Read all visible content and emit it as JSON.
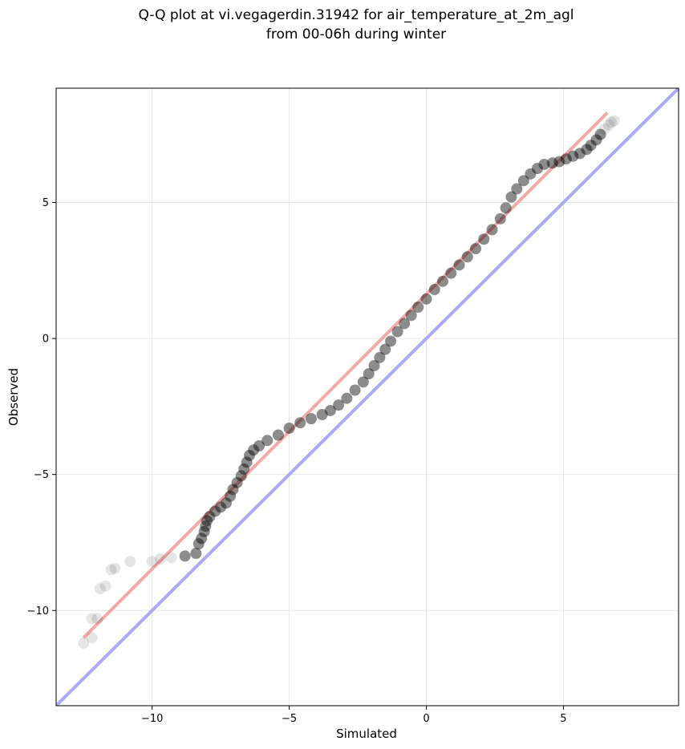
{
  "chart_data": {
    "type": "scatter",
    "title_lines": [
      "Q-Q plot at vi.vegagerdin.31942 for air_temperature_at_2m_agl",
      "from 00-06h during winter"
    ],
    "xlabel": "Simulated",
    "ylabel": "Observed",
    "xlim": [
      -13.5,
      9.2
    ],
    "ylim": [
      -13.5,
      9.2
    ],
    "x_ticks": [
      -10,
      -5,
      0,
      5
    ],
    "y_ticks": [
      -10,
      -5,
      0,
      5
    ],
    "x_tick_labels": [
      "−10",
      "−5",
      "0",
      "5"
    ],
    "y_tick_labels": [
      "−10",
      "−5",
      "0",
      "5"
    ],
    "grid": true,
    "point_color": "#000000",
    "identity_line_color": "#aaaaf5",
    "fit_line_color": "#f2a5a5",
    "series": [
      {
        "kind": "quantiles",
        "points": [
          [
            -12.5,
            -11.2
          ],
          [
            -12.2,
            -11.0
          ],
          [
            -12.2,
            -10.3
          ],
          [
            -12.0,
            -10.3
          ],
          [
            -11.9,
            -9.2
          ],
          [
            -11.7,
            -9.1
          ],
          [
            -11.5,
            -8.5
          ],
          [
            -11.35,
            -8.45
          ],
          [
            -10.8,
            -8.2
          ],
          [
            -10.0,
            -8.2
          ],
          [
            -9.7,
            -8.1
          ],
          [
            -9.3,
            -8.05
          ],
          [
            -8.8,
            -8.0
          ],
          [
            -8.4,
            -7.9
          ],
          [
            -8.3,
            -7.55
          ],
          [
            -8.2,
            -7.35
          ],
          [
            -8.1,
            -7.1
          ],
          [
            -8.05,
            -6.9
          ],
          [
            -8.0,
            -6.7
          ],
          [
            -7.9,
            -6.55
          ],
          [
            -7.7,
            -6.35
          ],
          [
            -7.5,
            -6.2
          ],
          [
            -7.3,
            -6.05
          ],
          [
            -7.15,
            -5.8
          ],
          [
            -7.05,
            -5.55
          ],
          [
            -6.9,
            -5.3
          ],
          [
            -6.75,
            -5.05
          ],
          [
            -6.65,
            -4.8
          ],
          [
            -6.55,
            -4.55
          ],
          [
            -6.45,
            -4.3
          ],
          [
            -6.3,
            -4.1
          ],
          [
            -6.1,
            -3.95
          ],
          [
            -5.8,
            -3.75
          ],
          [
            -5.4,
            -3.55
          ],
          [
            -5.0,
            -3.3
          ],
          [
            -4.6,
            -3.1
          ],
          [
            -4.2,
            -2.95
          ],
          [
            -3.8,
            -2.8
          ],
          [
            -3.5,
            -2.65
          ],
          [
            -3.2,
            -2.45
          ],
          [
            -2.9,
            -2.2
          ],
          [
            -2.6,
            -1.9
          ],
          [
            -2.3,
            -1.6
          ],
          [
            -2.1,
            -1.3
          ],
          [
            -1.9,
            -1.0
          ],
          [
            -1.7,
            -0.7
          ],
          [
            -1.5,
            -0.4
          ],
          [
            -1.3,
            -0.1
          ],
          [
            -1.05,
            0.25
          ],
          [
            -0.8,
            0.55
          ],
          [
            -0.55,
            0.85
          ],
          [
            -0.3,
            1.15
          ],
          [
            0.0,
            1.45
          ],
          [
            0.3,
            1.8
          ],
          [
            0.6,
            2.1
          ],
          [
            0.9,
            2.4
          ],
          [
            1.2,
            2.7
          ],
          [
            1.5,
            3.0
          ],
          [
            1.8,
            3.3
          ],
          [
            2.1,
            3.65
          ],
          [
            2.4,
            4.0
          ],
          [
            2.7,
            4.4
          ],
          [
            2.9,
            4.8
          ],
          [
            3.1,
            5.2
          ],
          [
            3.3,
            5.5
          ],
          [
            3.55,
            5.8
          ],
          [
            3.8,
            6.05
          ],
          [
            4.05,
            6.25
          ],
          [
            4.3,
            6.4
          ],
          [
            4.6,
            6.45
          ],
          [
            4.85,
            6.5
          ],
          [
            5.1,
            6.6
          ],
          [
            5.35,
            6.7
          ],
          [
            5.6,
            6.8
          ],
          [
            5.85,
            6.95
          ],
          [
            6.0,
            7.1
          ],
          [
            6.2,
            7.3
          ],
          [
            6.35,
            7.5
          ],
          [
            6.5,
            7.7
          ],
          [
            6.65,
            7.85
          ],
          [
            6.75,
            7.95
          ],
          [
            6.85,
            8.0
          ]
        ]
      },
      {
        "kind": "identity_line",
        "points": [
          [
            -13.5,
            -13.5
          ],
          [
            9.2,
            9.2
          ]
        ]
      },
      {
        "kind": "fit_line",
        "points": [
          [
            -12.5,
            -11.0
          ],
          [
            6.6,
            8.3
          ]
        ]
      }
    ]
  }
}
